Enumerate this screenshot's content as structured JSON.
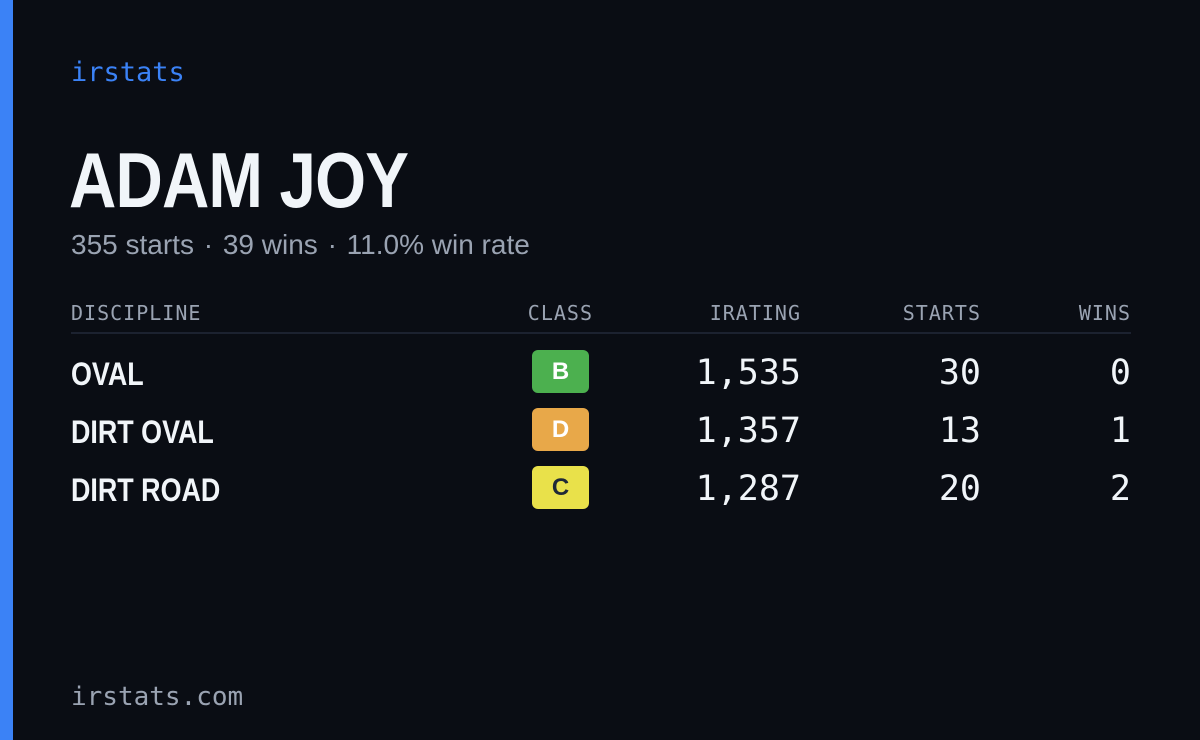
{
  "brand": "irstats",
  "driver": {
    "name": "ADAM JOY",
    "starts_text": "355 starts",
    "wins_text": "39 wins",
    "win_rate_text": "11.0% win rate",
    "separator": "·"
  },
  "table": {
    "headers": {
      "discipline": "DISCIPLINE",
      "class": "CLASS",
      "irating": "IRATING",
      "starts": "STARTS",
      "wins": "WINS"
    },
    "rows": [
      {
        "discipline": "OVAL",
        "class": "B",
        "class_color": "#4cb04f",
        "irating": "1,535",
        "starts": "30",
        "wins": "0"
      },
      {
        "discipline": "DIRT OVAL",
        "class": "D",
        "class_color": "#e8a849",
        "irating": "1,357",
        "starts": "13",
        "wins": "1"
      },
      {
        "discipline": "DIRT ROAD",
        "class": "C",
        "class_color": "#e9e14a",
        "irating": "1,287",
        "starts": "20",
        "wins": "2"
      }
    ]
  },
  "footer": {
    "url": "irstats.com"
  },
  "colors": {
    "background": "#0a0d14",
    "accent": "#3b82f6",
    "text_primary": "#f1f5f9",
    "text_muted": "#9aa3b2"
  }
}
